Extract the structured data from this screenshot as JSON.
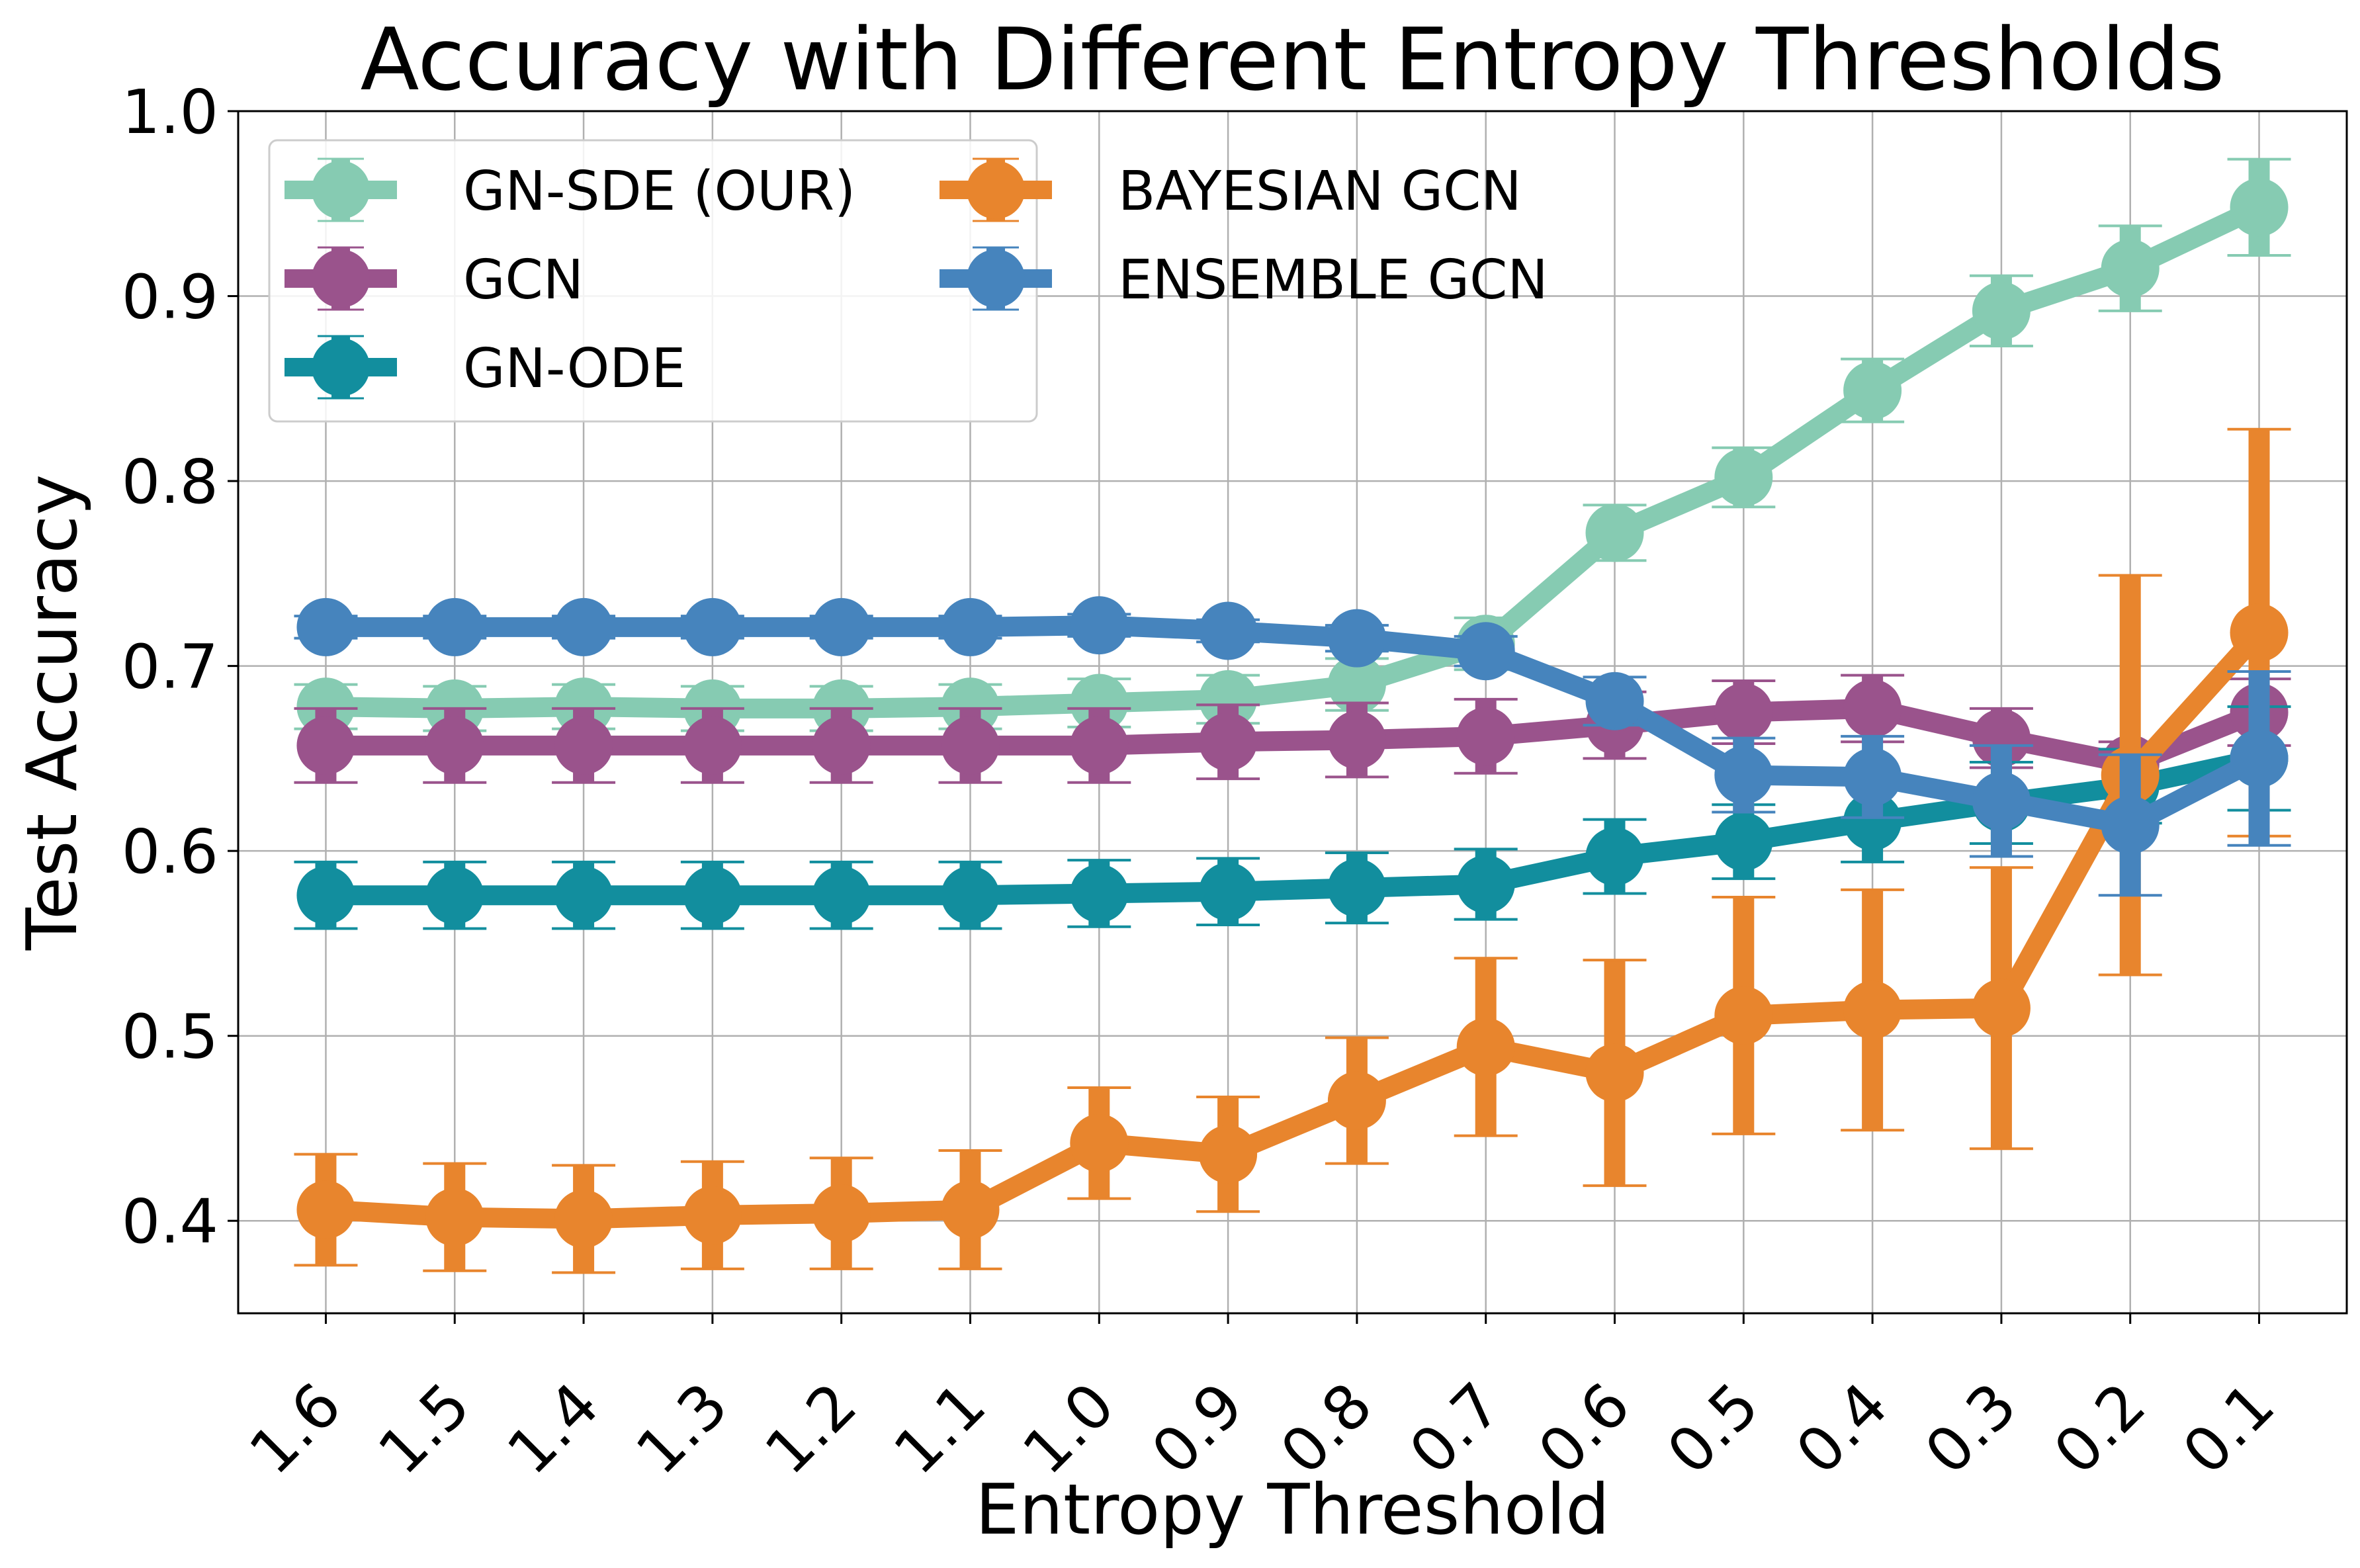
{
  "chart_data": {
    "type": "line",
    "title": "Accuracy with Different Entropy Thresholds",
    "xlabel": "Entropy Threshold",
    "ylabel": "Test Accuracy",
    "x": [
      "1.6",
      "1.5",
      "1.4",
      "1.3",
      "1.2",
      "1.1",
      "1.0",
      "0.9",
      "0.8",
      "0.7",
      "0.6",
      "0.5",
      "0.4",
      "0.3",
      "0.2",
      "0.1"
    ],
    "ylim": [
      0.35,
      1.0
    ],
    "yticks": [
      "0.4",
      "0.5",
      "0.6",
      "0.7",
      "0.8",
      "0.9",
      "1.0"
    ],
    "grid": true,
    "legend": {
      "placement": "top-left",
      "columns": 2
    },
    "series": [
      {
        "name": "GN-SDE (OUR)",
        "color": "#86cbb2",
        "values": [
          0.678,
          0.677,
          0.678,
          0.677,
          0.677,
          0.678,
          0.68,
          0.682,
          0.69,
          0.712,
          0.772,
          0.802,
          0.849,
          0.892,
          0.915,
          0.948
        ],
        "errors": [
          0.012,
          0.012,
          0.012,
          0.012,
          0.012,
          0.012,
          0.013,
          0.013,
          0.014,
          0.014,
          0.015,
          0.016,
          0.017,
          0.019,
          0.023,
          0.026
        ]
      },
      {
        "name": "GCN",
        "color": "#9a538c",
        "values": [
          0.657,
          0.657,
          0.657,
          0.657,
          0.657,
          0.657,
          0.657,
          0.659,
          0.66,
          0.662,
          0.668,
          0.675,
          0.677,
          0.661,
          0.647,
          0.675
        ],
        "errors": [
          0.02,
          0.02,
          0.02,
          0.02,
          0.02,
          0.02,
          0.02,
          0.02,
          0.02,
          0.02,
          0.018,
          0.017,
          0.018,
          0.016,
          0.012,
          0.018
        ]
      },
      {
        "name": "GN-ODE",
        "color": "#128e9e",
        "values": [
          0.576,
          0.576,
          0.576,
          0.576,
          0.576,
          0.576,
          0.577,
          0.578,
          0.58,
          0.582,
          0.597,
          0.605,
          0.616,
          0.626,
          0.635,
          0.65
        ],
        "errors": [
          0.018,
          0.018,
          0.018,
          0.018,
          0.018,
          0.018,
          0.018,
          0.018,
          0.019,
          0.019,
          0.02,
          0.02,
          0.022,
          0.022,
          0.02,
          0.028
        ]
      },
      {
        "name": "BAYESIAN GCN",
        "color": "#e8852d",
        "values": [
          0.406,
          0.402,
          0.401,
          0.403,
          0.404,
          0.406,
          0.442,
          0.436,
          0.465,
          0.494,
          0.48,
          0.511,
          0.514,
          0.515,
          0.641,
          0.718
        ],
        "errors": [
          0.03,
          0.029,
          0.029,
          0.029,
          0.03,
          0.032,
          0.03,
          0.031,
          0.034,
          0.048,
          0.061,
          0.064,
          0.065,
          0.076,
          0.108,
          0.11
        ]
      },
      {
        "name": "ENSEMBLE GCN",
        "color": "#4684bd",
        "values": [
          0.721,
          0.721,
          0.721,
          0.721,
          0.721,
          0.721,
          0.722,
          0.719,
          0.715,
          0.708,
          0.681,
          0.641,
          0.64,
          0.627,
          0.614,
          0.65
        ],
        "errors": [
          0.006,
          0.006,
          0.006,
          0.006,
          0.006,
          0.006,
          0.006,
          0.006,
          0.007,
          0.008,
          0.013,
          0.02,
          0.022,
          0.03,
          0.038,
          0.047
        ]
      }
    ]
  }
}
